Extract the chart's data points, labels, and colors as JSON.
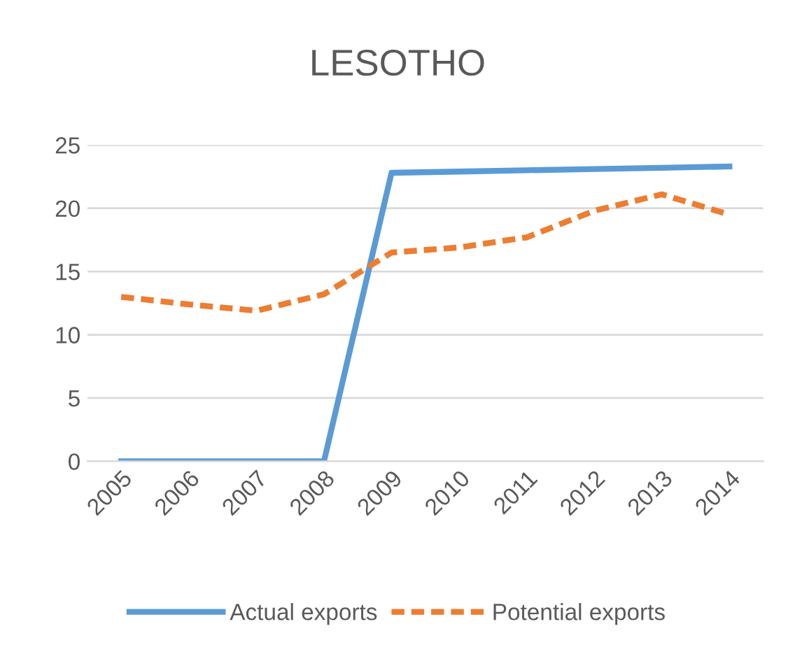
{
  "chart_data": {
    "type": "line",
    "title": "LESOTHO",
    "categories": [
      "2005",
      "2006",
      "2007",
      "2008",
      "2009",
      "2010",
      "2011",
      "2012",
      "2013",
      "2014"
    ],
    "series": [
      {
        "name": "Actual exports",
        "color": "#5b9bd5",
        "line_style": "solid",
        "values": [
          0,
          0,
          0,
          0,
          22.8,
          22.9,
          23.0,
          23.1,
          23.2,
          23.3
        ]
      },
      {
        "name": "Potential exports",
        "color": "#ed7d31",
        "line_style": "dashed",
        "values": [
          13.0,
          12.4,
          11.9,
          13.2,
          16.5,
          16.9,
          17.7,
          19.8,
          21.1,
          19.5
        ]
      }
    ],
    "ylim": [
      0,
      25
    ],
    "yticks": [
      0,
      5,
      10,
      15,
      20,
      25
    ],
    "grid": "y",
    "legend": "bottom",
    "marker": "none"
  }
}
